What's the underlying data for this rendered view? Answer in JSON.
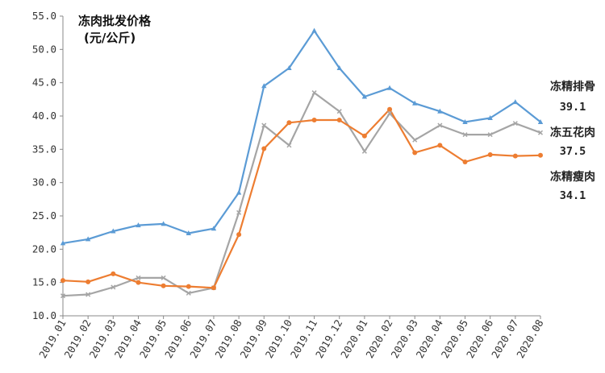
{
  "chart_data": {
    "type": "line",
    "title_line1": "冻肉批发价格",
    "title_line2": "(元/公斤)",
    "categories": [
      "2019.01",
      "2019.02",
      "2019.03",
      "2019.04",
      "2019.05",
      "2019.06",
      "2019.07",
      "2019.08",
      "2019.09",
      "2019.10",
      "2019.11",
      "2019.12",
      "2020.01",
      "2020.02",
      "2020.03",
      "2020.04",
      "2020.05",
      "2020.06",
      "2020.07",
      "2020.08"
    ],
    "ylim": [
      10.0,
      55.0
    ],
    "yticks": [
      "10.0",
      "15.0",
      "20.0",
      "25.0",
      "30.0",
      "35.0",
      "40.0",
      "45.0",
      "50.0",
      "55.0"
    ],
    "grid": false,
    "series": [
      {
        "name": "冻精排骨",
        "end_value": "39.1",
        "color": "#5B9BD5",
        "marker": "triangle",
        "values": [
          20.9,
          21.5,
          22.7,
          23.6,
          23.8,
          22.4,
          23.1,
          28.5,
          44.5,
          47.2,
          52.8,
          47.2,
          42.9,
          44.2,
          41.9,
          40.7,
          39.1,
          39.7,
          42.1,
          39.1
        ]
      },
      {
        "name": "冻五花肉",
        "end_value": "37.5",
        "color": "#A5A5A5",
        "marker": "x",
        "values": [
          13.0,
          13.2,
          14.3,
          15.7,
          15.7,
          13.4,
          14.2,
          25.5,
          38.6,
          35.6,
          43.5,
          40.7,
          34.7,
          40.4,
          36.4,
          38.6,
          37.2,
          37.2,
          38.9,
          37.5
        ]
      },
      {
        "name": "冻精瘦肉",
        "end_value": "34.1",
        "color": "#ED7D31",
        "marker": "circle",
        "values": [
          15.3,
          15.1,
          16.3,
          15.0,
          14.5,
          14.4,
          14.2,
          22.2,
          35.1,
          39.0,
          39.4,
          39.4,
          37.0,
          41.0,
          34.5,
          35.6,
          33.1,
          34.2,
          34.0,
          34.1
        ]
      }
    ]
  }
}
